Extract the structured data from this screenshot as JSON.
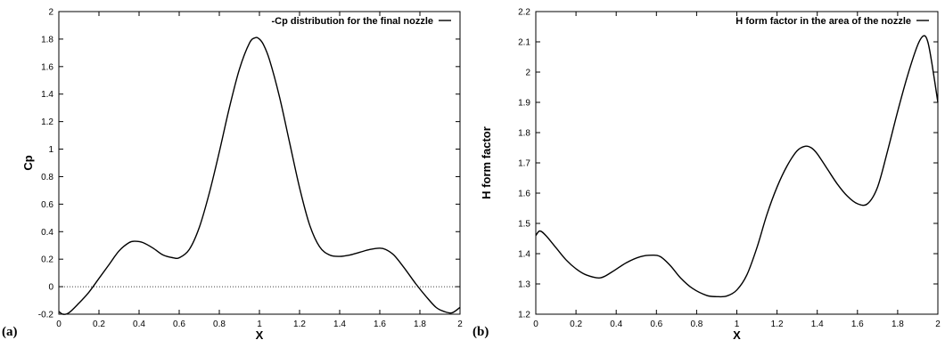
{
  "chart_data": [
    {
      "panel_label": "(a)",
      "type": "line",
      "title": "",
      "xlabel": "X",
      "ylabel": "Cp",
      "xlim": [
        0,
        2
      ],
      "ylim": [
        -0.2,
        2
      ],
      "xticks": [
        0,
        0.2,
        0.4,
        0.6,
        0.8,
        1,
        1.2,
        1.4,
        1.6,
        1.8,
        2
      ],
      "yticks": [
        -0.2,
        0,
        0.2,
        0.4,
        0.6,
        0.8,
        1,
        1.2,
        1.4,
        1.6,
        1.8,
        2
      ],
      "legend_position": "top-right",
      "grid": false,
      "reference_line": {
        "y": 0,
        "style": "dotted"
      },
      "series": [
        {
          "name": "-Cp distribution for the final nozzle",
          "x": [
            0.0,
            0.02,
            0.05,
            0.1,
            0.15,
            0.2,
            0.25,
            0.3,
            0.35,
            0.38,
            0.42,
            0.47,
            0.52,
            0.57,
            0.6,
            0.65,
            0.7,
            0.75,
            0.8,
            0.85,
            0.9,
            0.95,
            0.98,
            1.0,
            1.02,
            1.05,
            1.1,
            1.15,
            1.2,
            1.25,
            1.3,
            1.35,
            1.4,
            1.45,
            1.5,
            1.55,
            1.6,
            1.63,
            1.67,
            1.72,
            1.78,
            1.83,
            1.88,
            1.92,
            1.96,
            2.0
          ],
          "y": [
            -0.18,
            -0.2,
            -0.19,
            -0.12,
            -0.04,
            0.06,
            0.16,
            0.26,
            0.32,
            0.33,
            0.32,
            0.28,
            0.23,
            0.21,
            0.21,
            0.27,
            0.43,
            0.68,
            0.98,
            1.3,
            1.58,
            1.77,
            1.81,
            1.8,
            1.76,
            1.65,
            1.38,
            1.05,
            0.72,
            0.45,
            0.29,
            0.23,
            0.22,
            0.23,
            0.25,
            0.27,
            0.28,
            0.27,
            0.23,
            0.14,
            0.02,
            -0.07,
            -0.15,
            -0.18,
            -0.19,
            -0.15
          ]
        }
      ]
    },
    {
      "panel_label": "(b)",
      "type": "line",
      "title": "",
      "xlabel": "X",
      "ylabel": "H form factor",
      "xlim": [
        0,
        2
      ],
      "ylim": [
        1.2,
        2.2
      ],
      "xticks": [
        0,
        0.2,
        0.4,
        0.6,
        0.8,
        1,
        1.2,
        1.4,
        1.6,
        1.8,
        2
      ],
      "yticks": [
        1.2,
        1.3,
        1.4,
        1.5,
        1.6,
        1.7,
        1.8,
        1.9,
        2,
        2.1,
        2.2
      ],
      "legend_position": "top-right",
      "grid": false,
      "series": [
        {
          "name": "H form factor in the area of the nozzle",
          "x": [
            0.0,
            0.02,
            0.05,
            0.1,
            0.15,
            0.2,
            0.25,
            0.32,
            0.38,
            0.45,
            0.52,
            0.58,
            0.62,
            0.67,
            0.72,
            0.78,
            0.85,
            0.9,
            0.95,
            1.0,
            1.05,
            1.1,
            1.15,
            1.2,
            1.25,
            1.3,
            1.34,
            1.37,
            1.4,
            1.45,
            1.5,
            1.55,
            1.6,
            1.65,
            1.7,
            1.75,
            1.8,
            1.85,
            1.9,
            1.93,
            1.95,
            1.97,
            2.0
          ],
          "y": [
            1.46,
            1.475,
            1.46,
            1.42,
            1.38,
            1.35,
            1.33,
            1.32,
            1.34,
            1.37,
            1.39,
            1.395,
            1.39,
            1.36,
            1.32,
            1.285,
            1.262,
            1.258,
            1.26,
            1.28,
            1.33,
            1.42,
            1.53,
            1.62,
            1.69,
            1.74,
            1.755,
            1.75,
            1.73,
            1.68,
            1.63,
            1.59,
            1.565,
            1.565,
            1.62,
            1.74,
            1.87,
            1.99,
            2.09,
            2.12,
            2.1,
            2.03,
            1.9
          ]
        }
      ]
    }
  ]
}
